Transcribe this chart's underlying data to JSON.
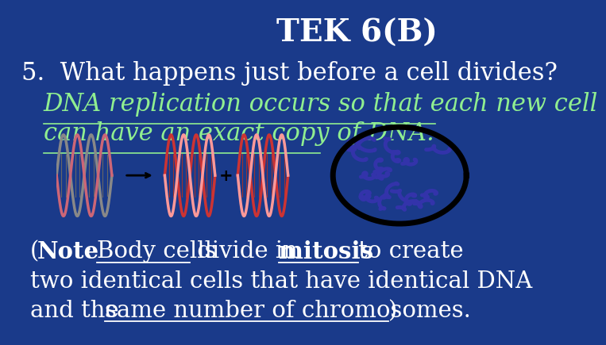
{
  "background_color": "#1a3a8a",
  "title": "TEK 6(B)",
  "title_color": "#ffffff",
  "title_fontsize": 28,
  "question": "5.  What happens just before a cell divides?",
  "question_color": "#ffffff",
  "question_fontsize": 22,
  "answer_line1": "DNA replication occurs so that each new cell",
  "answer_line2": "can have an exact copy of DNA.",
  "answer_color": "#90ee90",
  "answer_fontsize": 22,
  "note_color": "#ffffff",
  "note_fontsize": 21
}
